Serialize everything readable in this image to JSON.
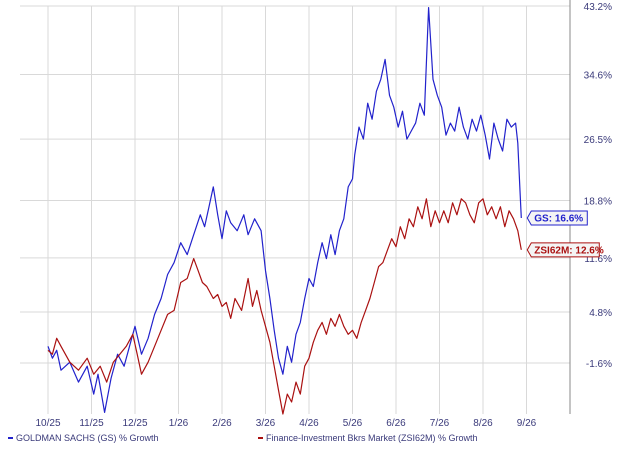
{
  "chart_data": {
    "type": "line",
    "x_tick_labels": [
      "10/25",
      "11/25",
      "12/25",
      "1/26",
      "2/26",
      "3/26",
      "4/26",
      "5/26",
      "6/26",
      "7/26",
      "8/26",
      "9/26"
    ],
    "y_tick_labels": [
      "43.2%",
      "34.6%",
      "26.5%",
      "18.8%",
      "11.6%",
      "4.8%",
      "-1.6%"
    ],
    "ylim": [
      -8.0,
      43.2
    ],
    "grid": true,
    "legend_position": "bottom",
    "series": [
      {
        "name": "GOLDMAN SACHS (GS) % Growth",
        "color": "#2222cc",
        "end_label": "GS: 16.6%",
        "end_value": 16.6,
        "points": [
          [
            0.0,
            0.5
          ],
          [
            0.1,
            -1.0
          ],
          [
            0.2,
            0.0
          ],
          [
            0.3,
            -2.5
          ],
          [
            0.5,
            -1.5
          ],
          [
            0.7,
            -4.0
          ],
          [
            0.9,
            -2.0
          ],
          [
            1.05,
            -5.5
          ],
          [
            1.15,
            -3.0
          ],
          [
            1.3,
            -7.8
          ],
          [
            1.45,
            -3.5
          ],
          [
            1.6,
            -0.5
          ],
          [
            1.75,
            -2.0
          ],
          [
            1.9,
            1.0
          ],
          [
            2.0,
            3.0
          ],
          [
            2.15,
            -0.5
          ],
          [
            2.3,
            1.5
          ],
          [
            2.45,
            4.5
          ],
          [
            2.6,
            6.5
          ],
          [
            2.75,
            9.5
          ],
          [
            2.9,
            11.0
          ],
          [
            3.05,
            13.5
          ],
          [
            3.2,
            12.0
          ],
          [
            3.35,
            14.5
          ],
          [
            3.5,
            17.0
          ],
          [
            3.6,
            15.5
          ],
          [
            3.7,
            18.0
          ],
          [
            3.8,
            20.5
          ],
          [
            3.9,
            17.0
          ],
          [
            4.0,
            14.0
          ],
          [
            4.1,
            17.5
          ],
          [
            4.2,
            16.0
          ],
          [
            4.35,
            15.0
          ],
          [
            4.5,
            17.0
          ],
          [
            4.6,
            14.5
          ],
          [
            4.75,
            16.5
          ],
          [
            4.9,
            15.0
          ],
          [
            5.0,
            10.0
          ],
          [
            5.1,
            6.5
          ],
          [
            5.2,
            2.5
          ],
          [
            5.3,
            -1.0
          ],
          [
            5.4,
            -3.0
          ],
          [
            5.5,
            0.5
          ],
          [
            5.6,
            -1.5
          ],
          [
            5.7,
            2.0
          ],
          [
            5.8,
            3.5
          ],
          [
            5.9,
            6.5
          ],
          [
            6.0,
            9.0
          ],
          [
            6.1,
            8.0
          ],
          [
            6.2,
            11.0
          ],
          [
            6.3,
            13.5
          ],
          [
            6.4,
            11.5
          ],
          [
            6.5,
            14.5
          ],
          [
            6.6,
            12.0
          ],
          [
            6.7,
            15.0
          ],
          [
            6.8,
            16.5
          ],
          [
            6.9,
            20.5
          ],
          [
            7.0,
            21.5
          ],
          [
            7.05,
            24.5
          ],
          [
            7.15,
            28.0
          ],
          [
            7.25,
            26.5
          ],
          [
            7.35,
            31.0
          ],
          [
            7.45,
            29.0
          ],
          [
            7.55,
            32.5
          ],
          [
            7.65,
            34.0
          ],
          [
            7.75,
            36.5
          ],
          [
            7.85,
            32.0
          ],
          [
            7.95,
            30.5
          ],
          [
            8.05,
            28.0
          ],
          [
            8.15,
            30.0
          ],
          [
            8.25,
            26.5
          ],
          [
            8.35,
            27.5
          ],
          [
            8.45,
            28.5
          ],
          [
            8.55,
            31.0
          ],
          [
            8.65,
            29.5
          ],
          [
            8.75,
            43.0
          ],
          [
            8.85,
            34.0
          ],
          [
            8.95,
            32.0
          ],
          [
            9.05,
            30.5
          ],
          [
            9.15,
            27.0
          ],
          [
            9.25,
            28.5
          ],
          [
            9.35,
            27.5
          ],
          [
            9.45,
            30.5
          ],
          [
            9.55,
            28.0
          ],
          [
            9.65,
            26.5
          ],
          [
            9.75,
            29.0
          ],
          [
            9.85,
            27.5
          ],
          [
            9.95,
            29.5
          ],
          [
            10.05,
            27.0
          ],
          [
            10.15,
            24.0
          ],
          [
            10.25,
            28.5
          ],
          [
            10.35,
            26.5
          ],
          [
            10.45,
            25.0
          ],
          [
            10.55,
            29.0
          ],
          [
            10.65,
            28.0
          ],
          [
            10.75,
            28.5
          ],
          [
            10.8,
            26.0
          ],
          [
            10.85,
            20.0
          ],
          [
            10.88,
            16.6
          ]
        ]
      },
      {
        "name": "Finance-Investment Bkrs Market (ZSI62M) % Growth",
        "color": "#aa1111",
        "end_label": "ZSI62M: 12.6%",
        "end_value": 12.6,
        "points": [
          [
            0.0,
            0.0
          ],
          [
            0.1,
            -0.5
          ],
          [
            0.2,
            1.5
          ],
          [
            0.3,
            0.5
          ],
          [
            0.5,
            -1.5
          ],
          [
            0.7,
            -2.5
          ],
          [
            0.9,
            -1.0
          ],
          [
            1.05,
            -3.0
          ],
          [
            1.2,
            -2.0
          ],
          [
            1.35,
            -4.0
          ],
          [
            1.5,
            -1.5
          ],
          [
            1.65,
            -0.5
          ],
          [
            1.8,
            0.5
          ],
          [
            1.95,
            2.0
          ],
          [
            2.05,
            -0.5
          ],
          [
            2.15,
            -3.0
          ],
          [
            2.3,
            -1.5
          ],
          [
            2.45,
            0.5
          ],
          [
            2.6,
            2.5
          ],
          [
            2.75,
            4.5
          ],
          [
            2.9,
            5.0
          ],
          [
            3.05,
            8.5
          ],
          [
            3.2,
            9.0
          ],
          [
            3.35,
            11.5
          ],
          [
            3.45,
            10.0
          ],
          [
            3.55,
            8.5
          ],
          [
            3.65,
            8.0
          ],
          [
            3.8,
            6.5
          ],
          [
            3.9,
            7.0
          ],
          [
            4.0,
            5.5
          ],
          [
            4.1,
            6.0
          ],
          [
            4.2,
            4.0
          ],
          [
            4.3,
            6.5
          ],
          [
            4.45,
            5.0
          ],
          [
            4.6,
            9.0
          ],
          [
            4.7,
            5.5
          ],
          [
            4.8,
            7.5
          ],
          [
            4.9,
            5.0
          ],
          [
            5.0,
            3.0
          ],
          [
            5.1,
            1.0
          ],
          [
            5.2,
            -2.0
          ],
          [
            5.3,
            -5.0
          ],
          [
            5.4,
            -8.0
          ],
          [
            5.5,
            -5.5
          ],
          [
            5.6,
            -6.5
          ],
          [
            5.7,
            -4.0
          ],
          [
            5.8,
            -5.5
          ],
          [
            5.9,
            -2.0
          ],
          [
            6.0,
            -1.0
          ],
          [
            6.1,
            1.0
          ],
          [
            6.2,
            2.5
          ],
          [
            6.3,
            3.5
          ],
          [
            6.4,
            2.0
          ],
          [
            6.5,
            4.0
          ],
          [
            6.6,
            3.0
          ],
          [
            6.7,
            4.5
          ],
          [
            6.8,
            3.0
          ],
          [
            6.9,
            2.0
          ],
          [
            7.0,
            2.5
          ],
          [
            7.1,
            1.5
          ],
          [
            7.2,
            3.5
          ],
          [
            7.3,
            5.0
          ],
          [
            7.4,
            6.5
          ],
          [
            7.5,
            8.5
          ],
          [
            7.6,
            10.5
          ],
          [
            7.7,
            11.0
          ],
          [
            7.8,
            12.5
          ],
          [
            7.9,
            14.0
          ],
          [
            8.0,
            13.0
          ],
          [
            8.1,
            15.5
          ],
          [
            8.2,
            14.0
          ],
          [
            8.3,
            16.5
          ],
          [
            8.4,
            15.5
          ],
          [
            8.5,
            18.0
          ],
          [
            8.6,
            16.5
          ],
          [
            8.7,
            19.0
          ],
          [
            8.8,
            15.5
          ],
          [
            8.9,
            17.5
          ],
          [
            9.0,
            16.0
          ],
          [
            9.1,
            17.5
          ],
          [
            9.2,
            16.0
          ],
          [
            9.3,
            18.5
          ],
          [
            9.4,
            17.0
          ],
          [
            9.5,
            19.0
          ],
          [
            9.6,
            18.5
          ],
          [
            9.7,
            17.0
          ],
          [
            9.8,
            16.0
          ],
          [
            9.9,
            18.5
          ],
          [
            10.0,
            19.0
          ],
          [
            10.1,
            17.0
          ],
          [
            10.2,
            18.0
          ],
          [
            10.3,
            16.5
          ],
          [
            10.4,
            18.0
          ],
          [
            10.5,
            15.5
          ],
          [
            10.6,
            17.5
          ],
          [
            10.7,
            16.5
          ],
          [
            10.8,
            15.0
          ],
          [
            10.88,
            12.6
          ]
        ]
      }
    ]
  }
}
